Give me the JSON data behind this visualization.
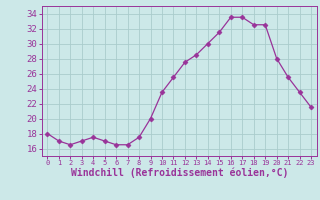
{
  "x": [
    0,
    1,
    2,
    3,
    4,
    5,
    6,
    7,
    8,
    9,
    10,
    11,
    12,
    13,
    14,
    15,
    16,
    17,
    18,
    19,
    20,
    21,
    22,
    23
  ],
  "y": [
    18,
    17,
    16.5,
    17,
    17.5,
    17,
    16.5,
    16.5,
    17.5,
    20,
    23.5,
    25.5,
    27.5,
    28.5,
    30,
    31.5,
    33.5,
    33.5,
    32.5,
    32.5,
    28,
    25.5,
    23.5,
    21.5
  ],
  "line_color": "#993399",
  "marker": "D",
  "marker_size": 2.5,
  "bg_color": "#cce8e8",
  "grid_color": "#aacccc",
  "xlabel": "Windchill (Refroidissement éolien,°C)",
  "xlabel_fontsize": 7,
  "tick_fontsize": 6,
  "ylim": [
    15,
    35
  ],
  "yticks": [
    16,
    18,
    20,
    22,
    24,
    26,
    28,
    30,
    32,
    34
  ],
  "xlim": [
    -0.5,
    23.5
  ],
  "xticks": [
    0,
    1,
    2,
    3,
    4,
    5,
    6,
    7,
    8,
    9,
    10,
    11,
    12,
    13,
    14,
    15,
    16,
    17,
    18,
    19,
    20,
    21,
    22,
    23
  ]
}
